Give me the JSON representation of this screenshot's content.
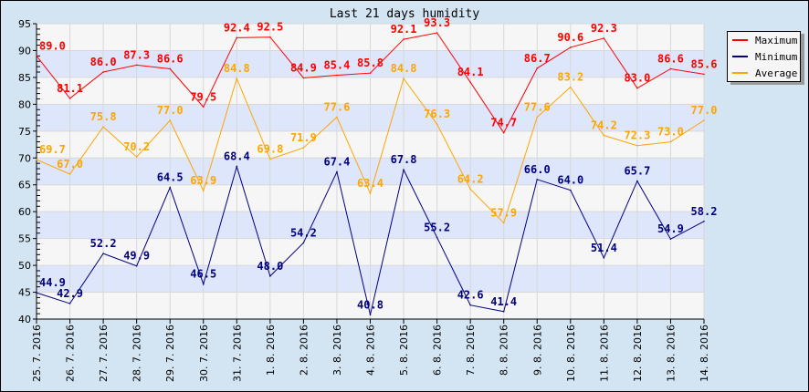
{
  "chart_data": {
    "type": "line",
    "title": "Last 21 days humidity",
    "xlabel": "",
    "ylabel": "",
    "ylim": [
      40,
      95
    ],
    "yticks": [
      40,
      45,
      50,
      55,
      60,
      65,
      70,
      75,
      80,
      85,
      90,
      95
    ],
    "grid": true,
    "legend_position": "top-right",
    "categories": [
      "25. 7. 2016",
      "26. 7. 2016",
      "27. 7. 2016",
      "28. 7. 2016",
      "29. 7. 2016",
      "30. 7. 2016",
      "31. 7. 2016",
      "1. 8. 2016",
      "2. 8. 2016",
      "3. 8. 2016",
      "4. 8. 2016",
      "5. 8. 2016",
      "6. 8. 2016",
      "7. 8. 2016",
      "8. 8. 2016",
      "9. 8. 2016",
      "10. 8. 2016",
      "11. 8. 2016",
      "12. 8. 2016",
      "13. 8. 2016",
      "14. 8. 2016"
    ],
    "series": [
      {
        "name": "Maximum",
        "color": "#ff0000",
        "values": [
          89.0,
          81.1,
          86.0,
          87.3,
          86.6,
          79.5,
          92.4,
          92.5,
          84.9,
          85.4,
          85.8,
          92.1,
          93.3,
          84.1,
          74.7,
          86.7,
          90.6,
          92.3,
          83.0,
          86.6,
          85.6
        ]
      },
      {
        "name": "Minimum",
        "color": "#000080",
        "values": [
          44.9,
          42.9,
          52.2,
          49.9,
          64.5,
          46.5,
          68.4,
          48.0,
          54.2,
          67.4,
          40.8,
          67.8,
          55.2,
          42.6,
          41.4,
          66.0,
          64.0,
          51.4,
          65.7,
          54.9,
          58.2
        ]
      },
      {
        "name": "Average",
        "color": "#ffa500",
        "values": [
          69.7,
          67.0,
          75.8,
          70.2,
          77.0,
          63.9,
          84.8,
          69.8,
          71.9,
          77.6,
          63.4,
          84.8,
          76.3,
          64.2,
          57.9,
          77.6,
          83.2,
          74.2,
          72.3,
          73.0,
          77.0
        ]
      }
    ]
  }
}
